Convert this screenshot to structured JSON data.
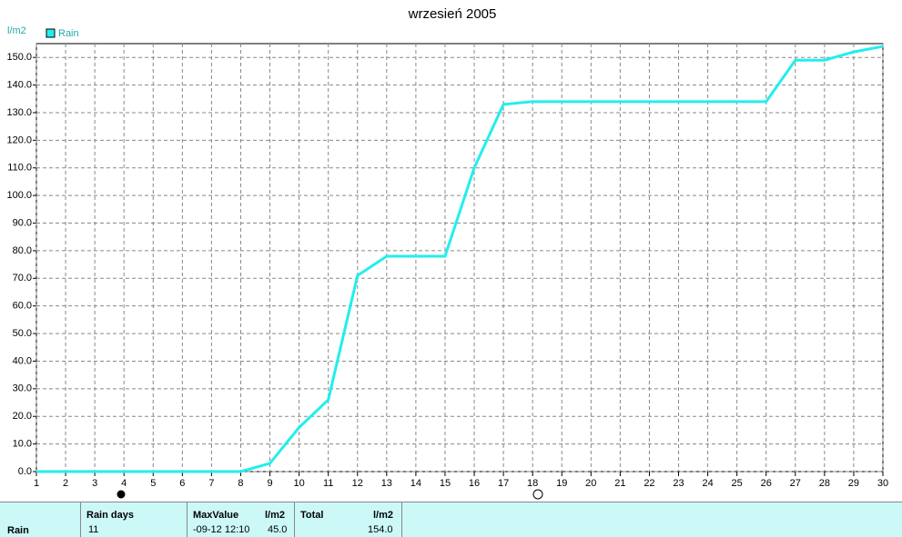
{
  "chart_data": {
    "type": "line",
    "title": "wrzesień 2005",
    "y_label": "l/m2",
    "x": [
      1,
      2,
      3,
      4,
      5,
      6,
      7,
      8,
      9,
      10,
      11,
      12,
      13,
      14,
      15,
      16,
      17,
      18,
      19,
      20,
      21,
      22,
      23,
      24,
      25,
      26,
      27,
      28,
      29,
      30
    ],
    "xlim": [
      1,
      30
    ],
    "xticks": [
      1,
      2,
      3,
      4,
      5,
      6,
      7,
      8,
      9,
      10,
      11,
      12,
      13,
      14,
      15,
      16,
      17,
      18,
      19,
      20,
      21,
      22,
      23,
      24,
      25,
      26,
      27,
      28,
      29,
      30
    ],
    "ylim": [
      0,
      155
    ],
    "yticks": [
      {
        "value": 0,
        "label": "0.0"
      },
      {
        "value": 10,
        "label": "10.0"
      },
      {
        "value": 20,
        "label": "20.0"
      },
      {
        "value": 30,
        "label": "30.0"
      },
      {
        "value": 40,
        "label": "40.0"
      },
      {
        "value": 50,
        "label": "50.0"
      },
      {
        "value": 60,
        "label": "60.0"
      },
      {
        "value": 70,
        "label": "70.0"
      },
      {
        "value": 80,
        "label": "80.0"
      },
      {
        "value": 90,
        "label": "90.0"
      },
      {
        "value": 100,
        "label": "100.0"
      },
      {
        "value": 110,
        "label": "110.0"
      },
      {
        "value": 120,
        "label": "120.0"
      },
      {
        "value": 130,
        "label": "130.0"
      },
      {
        "value": 140,
        "label": "140.0"
      },
      {
        "value": 150,
        "label": "150.0"
      }
    ],
    "grid": true,
    "legend": "top-left",
    "series": [
      {
        "name": "Rain",
        "color": "#22eeee",
        "values": [
          0,
          0,
          0,
          0,
          0,
          0,
          0,
          0,
          3,
          16,
          26,
          71,
          78,
          78,
          78,
          110,
          133,
          134,
          134,
          134,
          134,
          134,
          134,
          134,
          134,
          134,
          149,
          149,
          152,
          154
        ]
      }
    ]
  },
  "table": {
    "row_label": "Rain",
    "rain_days_header": "Rain days",
    "rain_days": "11",
    "max_header": "MaxValue",
    "max_unit": "l/m2",
    "max_time": "-09-12 12:10",
    "max_value": "45.0",
    "total_header": "Total",
    "total_unit": "l/m2",
    "total_value": "154.0"
  }
}
